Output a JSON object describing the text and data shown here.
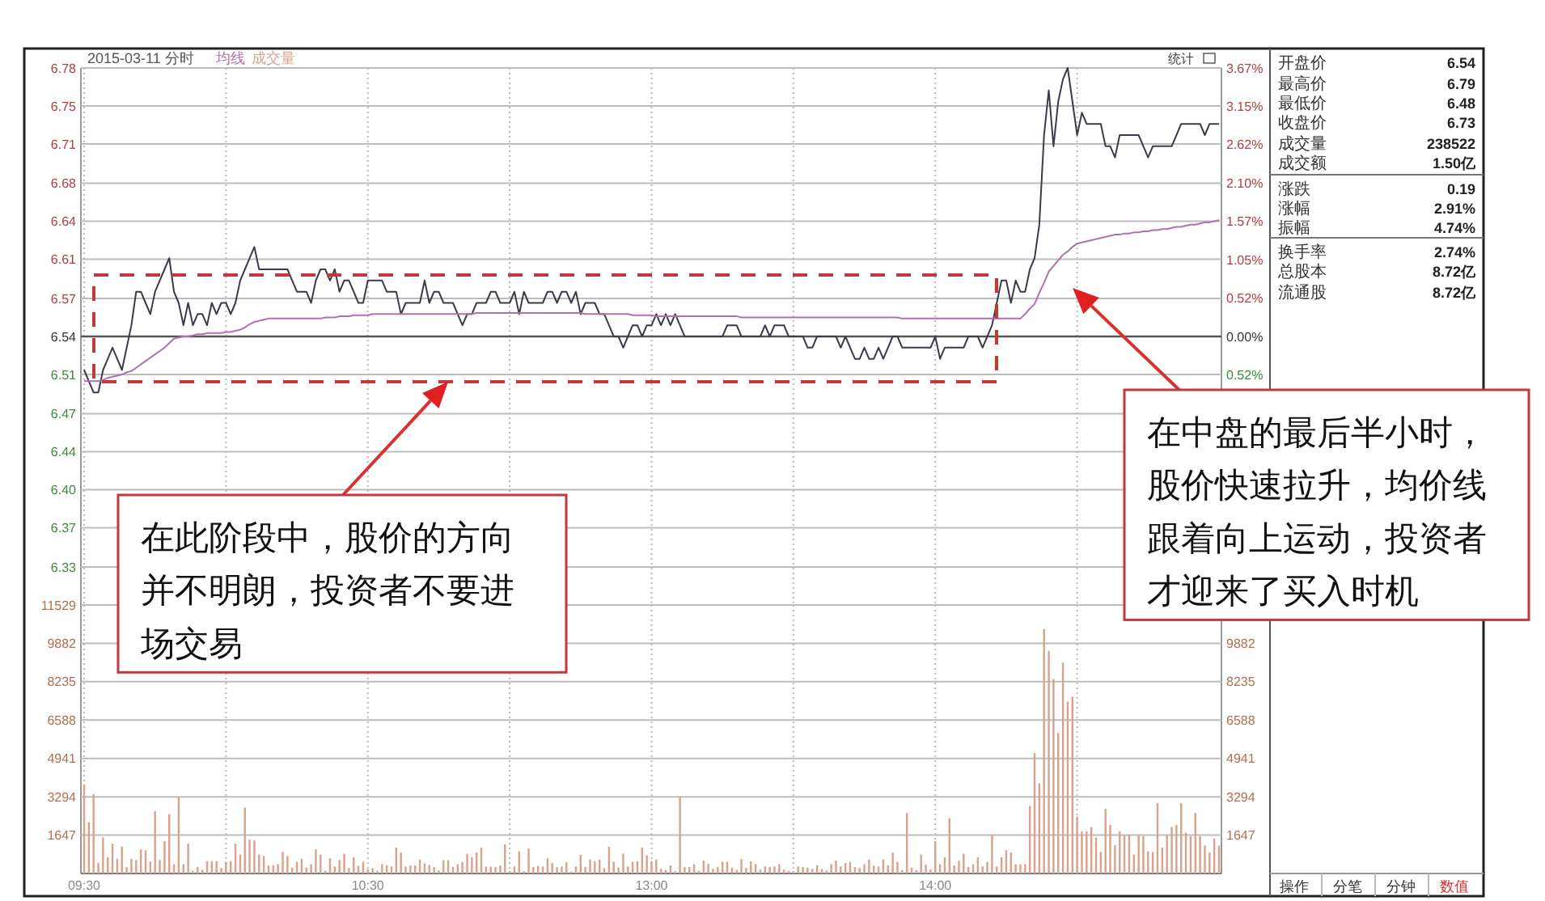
{
  "chart_data": [
    {
      "type": "line",
      "title": "2015-03-11 分时",
      "categories": [
        null,
        null,
        null,
        null,
        null,
        null,
        null,
        null,
        null,
        null,
        null,
        null,
        null,
        null,
        null,
        null,
        null,
        null,
        null,
        null,
        null,
        null,
        null,
        null,
        null,
        null,
        null,
        null,
        null,
        null,
        null,
        null,
        null,
        null,
        null,
        null,
        null,
        null,
        null,
        null,
        null,
        null,
        null,
        null,
        null,
        null,
        null,
        null,
        null,
        null,
        null,
        null,
        null,
        null,
        null,
        null,
        null,
        null,
        null,
        null,
        null,
        null,
        null,
        null,
        null,
        null,
        null,
        null,
        null,
        null,
        null,
        null,
        null,
        null,
        null,
        null,
        null,
        null,
        null,
        null,
        null,
        null,
        null,
        null,
        null,
        null,
        null,
        null,
        null,
        null,
        null,
        null,
        null,
        null,
        null,
        null,
        null,
        null,
        null,
        null,
        null,
        null,
        null,
        null,
        null,
        null,
        null,
        null,
        null,
        null,
        null,
        null,
        null,
        null,
        null,
        null,
        null,
        null,
        null,
        null,
        null,
        null,
        null,
        null,
        null,
        null,
        null,
        null,
        null,
        null,
        null,
        null,
        null,
        null,
        null,
        null,
        null,
        null,
        null,
        null,
        null,
        null,
        null,
        null,
        null,
        null,
        null,
        null,
        null,
        null,
        null,
        null,
        null,
        null,
        null,
        null,
        null,
        null,
        null,
        null,
        null,
        null,
        null,
        null,
        null,
        null,
        null,
        null,
        null,
        null,
        null,
        null,
        null,
        null,
        null,
        null,
        null,
        null,
        null,
        null,
        null,
        null,
        null,
        null,
        null,
        null,
        null,
        null,
        null,
        null,
        null,
        null,
        null,
        null,
        null,
        null,
        null,
        null,
        null,
        null,
        null,
        null,
        null,
        null,
        null,
        null,
        null,
        null,
        null,
        null,
        null,
        null,
        null,
        null,
        null,
        null,
        null,
        null,
        null,
        null,
        null,
        null,
        null,
        null,
        null,
        null,
        null,
        null,
        null,
        null,
        null,
        null,
        null,
        null,
        null,
        null,
        null,
        null,
        null,
        null,
        null
      ],
      "series": [
        {
          "color": "#3a3a4a",
          "values": [
            6.51,
            6.5,
            6.49,
            6.49,
            6.51,
            6.52,
            6.53,
            6.52,
            6.51,
            6.53,
            6.55,
            6.58,
            6.58,
            6.57,
            6.56,
            6.58,
            6.59,
            6.6,
            6.61,
            6.58,
            6.57,
            6.55,
            6.57,
            6.55,
            6.56,
            6.56,
            6.55,
            6.57,
            6.56,
            6.57,
            6.57,
            6.56,
            6.57,
            6.59,
            6.6,
            6.61,
            6.62,
            6.6,
            6.6,
            6.6,
            6.6,
            6.6,
            6.6,
            6.6,
            6.59,
            6.58,
            6.58,
            6.58,
            6.57,
            6.59,
            6.6,
            6.6,
            6.59,
            6.6,
            6.58,
            6.59,
            6.59,
            6.58,
            6.57,
            6.57,
            6.59,
            6.59,
            6.59,
            6.59,
            6.58,
            6.58,
            6.58,
            6.56,
            6.57,
            6.57,
            6.57,
            6.57,
            6.59,
            6.57,
            6.58,
            6.58,
            6.57,
            6.57,
            6.57,
            6.56,
            6.55,
            6.56,
            6.56,
            6.57,
            6.57,
            6.57,
            6.58,
            6.58,
            6.57,
            6.57,
            6.57,
            6.58,
            6.56,
            6.58,
            6.57,
            6.57,
            6.57,
            6.57,
            6.58,
            6.58,
            6.57,
            6.58,
            6.58,
            6.57,
            6.58,
            6.56,
            6.57,
            6.57,
            6.57,
            6.56,
            6.56,
            6.55,
            6.54,
            6.54,
            6.53,
            6.54,
            6.55,
            6.55,
            6.54,
            6.55,
            6.55,
            6.56,
            6.55,
            6.56,
            6.55,
            6.56,
            6.55,
            6.54,
            6.54,
            6.54,
            6.54,
            6.54,
            6.54,
            6.54,
            6.54,
            6.54,
            6.55,
            6.55,
            6.55,
            6.54,
            6.54,
            6.54,
            6.54,
            6.54,
            6.55,
            6.54,
            6.55,
            6.55,
            6.55,
            6.54,
            6.54,
            6.54,
            6.54,
            6.53,
            6.53,
            6.54,
            6.54,
            6.54,
            6.54,
            6.54,
            6.53,
            6.54,
            6.53,
            6.52,
            6.52,
            6.53,
            6.52,
            6.52,
            6.53,
            6.52,
            6.53,
            6.54,
            6.54,
            6.53,
            6.53,
            6.53,
            6.53,
            6.53,
            6.53,
            6.53,
            6.54,
            6.52,
            6.53,
            6.53,
            6.53,
            6.53,
            6.53,
            6.54,
            6.54,
            6.54,
            6.53,
            6.54,
            6.55,
            6.57,
            6.59,
            6.59,
            6.57,
            6.59,
            6.58,
            6.58,
            6.6,
            6.61,
            6.64,
            6.72,
            6.76,
            6.71,
            6.75,
            6.77,
            6.78,
            6.75,
            6.72,
            6.74,
            6.73,
            6.73,
            6.73,
            6.73,
            6.71,
            6.71,
            6.7,
            6.72,
            6.72,
            6.72,
            6.72,
            6.72,
            6.71,
            6.7,
            6.71,
            6.71,
            6.71,
            6.71,
            6.71,
            6.72,
            6.73,
            6.73,
            6.73,
            6.73,
            6.73,
            6.72,
            6.73,
            6.73,
            6.73
          ]
        },
        {
          "name": "均线",
          "color": "#b070b0",
          "values": [
            6.5,
            6.5,
            6.5,
            6.5,
            6.501,
            6.503,
            6.504,
            6.505,
            6.506,
            6.508,
            6.509,
            6.512,
            6.515,
            6.518,
            6.521,
            6.524,
            6.527,
            6.53,
            6.534,
            6.538,
            6.539,
            6.54,
            6.54,
            6.541,
            6.542,
            6.542,
            6.543,
            6.543,
            6.543,
            6.543,
            6.544,
            6.544,
            6.545,
            6.546,
            6.548,
            6.551,
            6.553,
            6.554,
            6.555,
            6.556,
            6.556,
            6.556,
            6.556,
            6.556,
            6.556,
            6.556,
            6.556,
            6.556,
            6.556,
            6.556,
            6.556,
            6.557,
            6.557,
            6.557,
            6.558,
            6.558,
            6.558,
            6.559,
            6.559,
            6.559,
            6.559,
            6.56,
            6.56,
            6.56,
            6.56,
            6.56,
            6.56,
            6.56,
            6.56,
            6.56,
            6.56,
            6.56,
            6.56,
            6.56,
            6.56,
            6.56,
            6.56,
            6.56,
            6.56,
            6.56,
            6.56,
            6.56,
            6.56,
            6.561,
            6.561,
            6.561,
            6.561,
            6.561,
            6.561,
            6.561,
            6.561,
            6.561,
            6.561,
            6.561,
            6.561,
            6.561,
            6.561,
            6.561,
            6.561,
            6.561,
            6.561,
            6.561,
            6.561,
            6.561,
            6.561,
            6.561,
            6.56,
            6.56,
            6.56,
            6.56,
            6.56,
            6.56,
            6.56,
            6.56,
            6.56,
            6.56,
            6.559,
            6.559,
            6.559,
            6.559,
            6.559,
            6.558,
            6.558,
            6.558,
            6.558,
            6.558,
            6.558,
            6.558,
            6.558,
            6.558,
            6.558,
            6.558,
            6.558,
            6.558,
            6.558,
            6.558,
            6.558,
            6.558,
            6.558,
            6.557,
            6.557,
            6.557,
            6.557,
            6.557,
            6.557,
            6.557,
            6.557,
            6.557,
            6.557,
            6.557,
            6.557,
            6.557,
            6.557,
            6.557,
            6.557,
            6.557,
            6.557,
            6.557,
            6.557,
            6.557,
            6.557,
            6.557,
            6.557,
            6.557,
            6.557,
            6.557,
            6.557,
            6.557,
            6.557,
            6.557,
            6.557,
            6.557,
            6.557,
            6.556,
            6.556,
            6.556,
            6.556,
            6.556,
            6.556,
            6.556,
            6.556,
            6.556,
            6.556,
            6.556,
            6.556,
            6.556,
            6.556,
            6.556,
            6.556,
            6.556,
            6.556,
            6.556,
            6.556,
            6.556,
            6.556,
            6.556,
            6.556,
            6.556,
            6.556,
            6.56,
            6.565,
            6.569,
            6.579,
            6.588,
            6.598,
            6.603,
            6.608,
            6.613,
            6.616,
            6.62,
            6.623,
            6.624,
            6.625,
            6.626,
            6.627,
            6.628,
            6.629,
            6.63,
            6.631,
            6.631,
            6.632,
            6.632,
            6.633,
            6.633,
            6.634,
            6.634,
            6.635,
            6.635,
            6.636,
            6.636,
            6.637,
            6.638,
            6.638,
            6.639,
            6.64,
            6.64,
            6.641,
            6.642,
            6.642,
            6.643,
            6.644
          ]
        }
      ],
      "ylim": [
        6.3,
        6.78
      ],
      "yticks": [
        {
          "value": 6.78,
          "label": "6.78"
        },
        {
          "value": 6.746,
          "label": "6.75"
        },
        {
          "value": 6.712,
          "label": "6.71"
        },
        {
          "value": 6.677,
          "label": "6.68"
        },
        {
          "value": 6.643,
          "label": "6.64"
        },
        {
          "value": 6.609,
          "label": "6.61"
        },
        {
          "value": 6.574,
          "label": "6.57"
        },
        {
          "value": 6.54,
          "label": "6.54"
        },
        {
          "value": 6.506,
          "label": "6.51"
        },
        {
          "value": 6.471,
          "label": "6.47"
        },
        {
          "value": 6.437,
          "label": "6.44"
        },
        {
          "value": 6.403,
          "label": "6.40"
        },
        {
          "value": 6.369,
          "label": "6.37"
        },
        {
          "value": 6.334,
          "label": "6.33"
        }
      ],
      "y2lim": [
        -3.67,
        3.67
      ],
      "y2ticks": [
        {
          "value": 3.67,
          "label": "3.67%"
        },
        {
          "value": 3.147,
          "label": "3.15%"
        },
        {
          "value": 2.623,
          "label": "2.62%"
        },
        {
          "value": 2.098,
          "label": "2.10%"
        },
        {
          "value": 1.574,
          "label": "1.57%"
        },
        {
          "value": 1.049,
          "label": "1.05%"
        },
        {
          "value": 0.525,
          "label": "0.52%"
        },
        {
          "value": 0,
          "label": "0.00%"
        },
        {
          "value": -0.525,
          "label": "0.52%"
        }
      ],
      "ref_lines": [
        {
          "axis": "y",
          "value": 6.54,
          "color": "#555555"
        }
      ],
      "tick_labels": "y",
      "grid": true,
      "line_style": "solid",
      "annotations": [
        "统计",
        "在此阶段中，股价的方向并不明朗，投资者不要进场交易",
        "在中盘的最后半小时，股价快速拉升，均价线跟着向上运动，投资者才迎来了买入时机"
      ]
    },
    {
      "type": "bar",
      "categories": [
        "09:30",
        null,
        null,
        null,
        null,
        null,
        null,
        null,
        null,
        null,
        null,
        null,
        null,
        null,
        null,
        null,
        null,
        null,
        null,
        null,
        null,
        null,
        null,
        null,
        null,
        null,
        null,
        null,
        null,
        null,
        null,
        null,
        null,
        null,
        null,
        null,
        null,
        null,
        null,
        null,
        null,
        null,
        null,
        null,
        null,
        null,
        null,
        null,
        null,
        null,
        null,
        null,
        null,
        null,
        null,
        null,
        null,
        null,
        null,
        null,
        "10:30",
        null,
        null,
        null,
        null,
        null,
        null,
        null,
        null,
        null,
        null,
        null,
        null,
        null,
        null,
        null,
        null,
        null,
        null,
        null,
        null,
        null,
        null,
        null,
        null,
        null,
        null,
        null,
        null,
        null,
        null,
        null,
        null,
        null,
        null,
        null,
        null,
        null,
        null,
        null,
        null,
        null,
        null,
        null,
        null,
        null,
        null,
        null,
        null,
        null,
        null,
        null,
        null,
        null,
        null,
        null,
        null,
        null,
        null,
        null,
        "13:00",
        null,
        null,
        null,
        null,
        null,
        null,
        null,
        null,
        null,
        null,
        null,
        null,
        null,
        null,
        null,
        null,
        null,
        null,
        null,
        null,
        null,
        null,
        null,
        null,
        null,
        null,
        null,
        null,
        null,
        null,
        null,
        null,
        null,
        null,
        null,
        null,
        null,
        null,
        null,
        null,
        null,
        null,
        null,
        null,
        null,
        null,
        null,
        null,
        null,
        null,
        null,
        null,
        null,
        null,
        null,
        null,
        null,
        null,
        null,
        "14:00",
        null,
        null,
        null,
        null,
        null,
        null,
        null,
        null,
        null,
        null,
        null,
        null,
        null,
        null,
        null,
        null,
        null,
        null,
        null,
        null,
        null,
        null,
        null,
        null,
        null,
        null,
        null,
        null,
        null,
        null,
        null,
        null,
        null,
        null,
        null,
        null,
        null,
        null,
        null,
        null,
        null,
        null,
        null,
        null,
        null,
        null,
        null,
        null,
        null,
        null,
        null,
        null,
        null,
        null,
        null,
        null,
        null,
        null,
        null,
        null
      ],
      "series": [
        {
          "name": "成交量",
          "color": "#d9a28c",
          "values": [
            3830,
            2200,
            3410,
            460,
            1550,
            700,
            1280,
            630,
            1160,
            280,
            630,
            580,
            1040,
            1000,
            510,
            2670,
            580,
            1390,
            2550,
            400,
            3290,
            400,
            1280,
            120,
            280,
            160,
            530,
            530,
            530,
            230,
            500,
            530,
            1280,
            810,
            2830,
            1460,
            1420,
            810,
            750,
            350,
            350,
            400,
            930,
            750,
            250,
            500,
            630,
            250,
            400,
            1040,
            810,
            120,
            650,
            300,
            580,
            850,
            230,
            700,
            330,
            500,
            180,
            230,
            120,
            400,
            350,
            300,
            1110,
            900,
            300,
            350,
            350,
            600,
            430,
            370,
            280,
            130,
            570,
            570,
            280,
            400,
            500,
            850,
            700,
            900,
            1110,
            300,
            300,
            280,
            350,
            1250,
            100,
            300,
            950,
            100,
            1080,
            280,
            330,
            300,
            650,
            450,
            270,
            300,
            480,
            80,
            300,
            800,
            280,
            600,
            530,
            600,
            230,
            1150,
            500,
            260,
            850,
            300,
            500,
            520,
            1110,
            780,
            530,
            600,
            200,
            150,
            350,
            100,
            3290,
            280,
            280,
            400,
            120,
            560,
            420,
            200,
            280,
            500,
            500,
            250,
            150,
            620,
            240,
            520,
            400,
            170,
            300,
            280,
            300,
            400,
            170,
            120,
            100,
            300,
            280,
            250,
            200,
            350,
            200,
            120,
            400,
            550,
            300,
            450,
            500,
            280,
            250,
            400,
            600,
            330,
            300,
            600,
            350,
            900,
            500,
            150,
            2600,
            250,
            150,
            820,
            380,
            170,
            1390,
            400,
            700,
            2370,
            350,
            550,
            850,
            280,
            400,
            700,
            300,
            500,
            1670,
            300,
            700,
            1000,
            900,
            400,
            400,
            400,
            2900,
            5170,
            3870,
            10490,
            9560,
            8350,
            6030,
            9050,
            7380,
            7590,
            2440,
            1810,
            1810,
            1990,
            1550,
            930,
            2780,
            2090,
            1210,
            1810,
            1650,
            1650,
            810,
            1650,
            1600,
            950,
            930,
            3020,
            1110,
            1650,
            1990,
            2090,
            3020,
            1750,
            1600,
            2600,
            1600,
            1200,
            900,
            1500,
            1200
          ]
        }
      ],
      "ylim": [
        0,
        11529
      ],
      "yticks": [
        1647,
        3294,
        4941,
        6588,
        8235,
        9882,
        11529
      ],
      "y2lim": [
        0,
        11529
      ],
      "y2ticks": [
        1647,
        3294,
        4941,
        6588,
        8235,
        9882
      ],
      "grid": true
    },
    {
      "type": "other",
      "annotations": [
        "开盘价",
        "6.54",
        "最高价",
        "6.79",
        "最低价",
        "6.48",
        "收盘价",
        "6.73",
        "成交量",
        "238522",
        "成交额",
        "1.50亿",
        "涨跌",
        "0.19",
        "涨幅",
        "2.91%",
        "振幅",
        "4.74%",
        "换手率",
        "2.74%",
        "总股本",
        "8.72亿",
        "流通股",
        "8.72亿"
      ]
    },
    {
      "type": "other",
      "annotations": [
        "操作",
        "分笔",
        "分钟",
        "数值"
      ],
      "colors": [
        "#333333",
        "#333333",
        "#333333",
        "#e03030"
      ]
    }
  ]
}
